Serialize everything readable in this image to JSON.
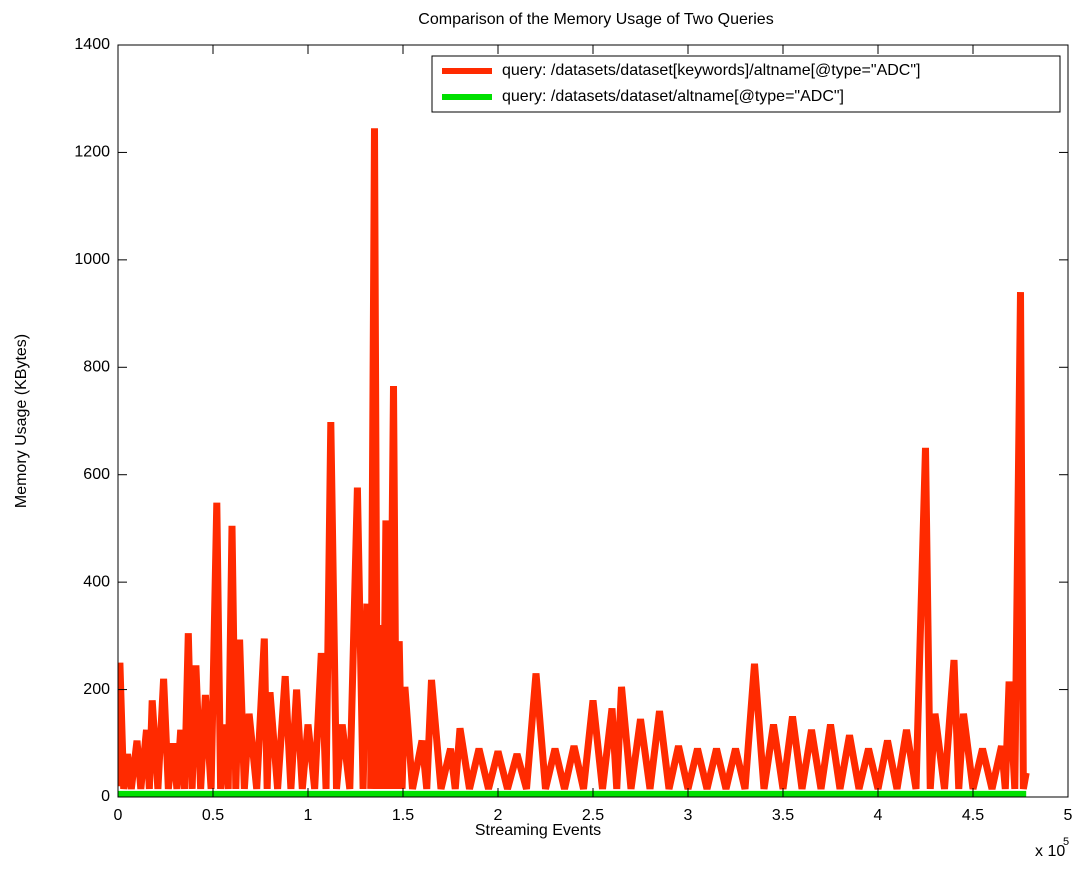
{
  "chart_data": {
    "type": "line",
    "title": "Comparison of the Memory Usage of Two Queries",
    "x_label": "Streaming Events",
    "y_label": "Memory Usage (KBytes)",
    "x_multiplier": "x 10",
    "x_multiplier_exponent": "5",
    "xlim": [
      0,
      5
    ],
    "ylim": [
      0,
      1400
    ],
    "xticks": [
      0,
      0.5,
      1,
      1.5,
      2,
      2.5,
      3,
      3.5,
      4,
      4.5,
      5
    ],
    "yticks": [
      0,
      200,
      400,
      600,
      800,
      1000,
      1200,
      1400
    ],
    "grid": false,
    "legend": "upper right",
    "series": [
      {
        "name": "query: /datasets/dataset[keywords]/altname[@type=\"ADC\"]",
        "color": "#ff2a00",
        "x": [
          0,
          0.01,
          0.03,
          0.05,
          0.07,
          0.1,
          0.12,
          0.15,
          0.165,
          0.18,
          0.21,
          0.24,
          0.265,
          0.29,
          0.31,
          0.33,
          0.35,
          0.37,
          0.39,
          0.41,
          0.435,
          0.46,
          0.49,
          0.52,
          0.54,
          0.56,
          0.58,
          0.6,
          0.62,
          0.64,
          0.665,
          0.69,
          0.73,
          0.77,
          0.785,
          0.8,
          0.84,
          0.88,
          0.91,
          0.94,
          0.97,
          1.0,
          1.035,
          1.07,
          1.095,
          1.12,
          1.15,
          1.18,
          1.22,
          1.26,
          1.29,
          1.31,
          1.32,
          1.33,
          1.35,
          1.365,
          1.38,
          1.395,
          1.41,
          1.43,
          1.45,
          1.465,
          1.48,
          1.495,
          1.51,
          1.55,
          1.6,
          1.625,
          1.65,
          1.7,
          1.75,
          1.775,
          1.8,
          1.85,
          1.9,
          1.95,
          2.0,
          2.05,
          2.1,
          2.15,
          2.2,
          2.25,
          2.3,
          2.35,
          2.4,
          2.45,
          2.5,
          2.55,
          2.6,
          2.625,
          2.65,
          2.7,
          2.75,
          2.8,
          2.85,
          2.9,
          2.95,
          3.0,
          3.05,
          3.1,
          3.15,
          3.2,
          3.25,
          3.3,
          3.35,
          3.4,
          3.45,
          3.5,
          3.55,
          3.6,
          3.65,
          3.7,
          3.75,
          3.8,
          3.85,
          3.9,
          3.95,
          4.0,
          4.05,
          4.1,
          4.15,
          4.2,
          4.25,
          4.275,
          4.3,
          4.35,
          4.4,
          4.425,
          4.45,
          4.5,
          4.55,
          4.6,
          4.65,
          4.67,
          4.69,
          4.72,
          4.75,
          4.765,
          4.78
        ],
        "values": [
          20,
          250,
          15,
          80,
          15,
          105,
          15,
          125,
          15,
          180,
          15,
          220,
          15,
          100,
          15,
          125,
          15,
          305,
          15,
          245,
          15,
          190,
          15,
          548,
          15,
          135,
          15,
          505,
          15,
          293,
          15,
          155,
          15,
          295,
          15,
          195,
          15,
          225,
          15,
          200,
          15,
          135,
          15,
          268,
          15,
          698,
          15,
          135,
          15,
          576,
          15,
          360,
          null,
          15,
          1245,
          15,
          320,
          15,
          515,
          15,
          765,
          15,
          290,
          15,
          205,
          15,
          105,
          15,
          218,
          15,
          90,
          15,
          128,
          15,
          90,
          15,
          85,
          15,
          80,
          15,
          230,
          15,
          90,
          15,
          95,
          15,
          180,
          15,
          165,
          15,
          205,
          15,
          145,
          15,
          160,
          15,
          95,
          15,
          90,
          15,
          90,
          15,
          90,
          15,
          248,
          15,
          135,
          15,
          150,
          15,
          125,
          15,
          135,
          15,
          115,
          15,
          90,
          15,
          105,
          15,
          125,
          15,
          650,
          15,
          155,
          15,
          255,
          15,
          155,
          15,
          90,
          15,
          95,
          15,
          215,
          15,
          940,
          15,
          45
        ]
      },
      {
        "name": "query: /datasets/dataset/altname[@type=\"ADC\"]",
        "color": "#00e000",
        "x": [
          0,
          4.78
        ],
        "values": [
          5,
          5
        ]
      }
    ]
  }
}
